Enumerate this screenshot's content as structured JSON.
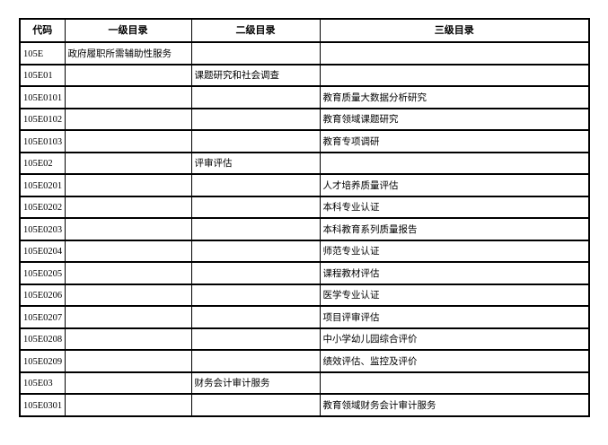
{
  "table": {
    "headers": [
      "代码",
      "一级目录",
      "二级目录",
      "三级目录"
    ],
    "rows": [
      {
        "code": "105E",
        "level1": "政府履职所需辅助性服务",
        "level2": "",
        "level3": ""
      },
      {
        "code": "105E01",
        "level1": "",
        "level2": "课题研究和社会调查",
        "level3": ""
      },
      {
        "code": "105E0101",
        "level1": "",
        "level2": "",
        "level3": "教育质量大数据分析研究"
      },
      {
        "code": "105E0102",
        "level1": "",
        "level2": "",
        "level3": "教育领域课题研究"
      },
      {
        "code": "105E0103",
        "level1": "",
        "level2": "",
        "level3": "教育专项调研"
      },
      {
        "code": "105E02",
        "level1": "",
        "level2": "评审评估",
        "level3": ""
      },
      {
        "code": "105E0201",
        "level1": "",
        "level2": "",
        "level3": "人才培养质量评估"
      },
      {
        "code": "105E0202",
        "level1": "",
        "level2": "",
        "level3": "本科专业认证"
      },
      {
        "code": "105E0203",
        "level1": "",
        "level2": "",
        "level3": "本科教育系列质量报告"
      },
      {
        "code": "105E0204",
        "level1": "",
        "level2": "",
        "level3": "师范专业认证"
      },
      {
        "code": "105E0205",
        "level1": "",
        "level2": "",
        "level3": "课程教材评估"
      },
      {
        "code": "105E0206",
        "level1": "",
        "level2": "",
        "level3": "医学专业认证"
      },
      {
        "code": "105E0207",
        "level1": "",
        "level2": "",
        "level3": "项目评审评估"
      },
      {
        "code": "105E0208",
        "level1": "",
        "level2": "",
        "level3": "中小学幼儿园综合评价"
      },
      {
        "code": "105E0209",
        "level1": "",
        "level2": "",
        "level3": "绩效评估、监控及评价"
      },
      {
        "code": "105E03",
        "level1": "",
        "level2": "财务会计审计服务",
        "level3": ""
      },
      {
        "code": "105E0301",
        "level1": "",
        "level2": "",
        "level3": "教育领域财务会计审计服务"
      }
    ]
  }
}
